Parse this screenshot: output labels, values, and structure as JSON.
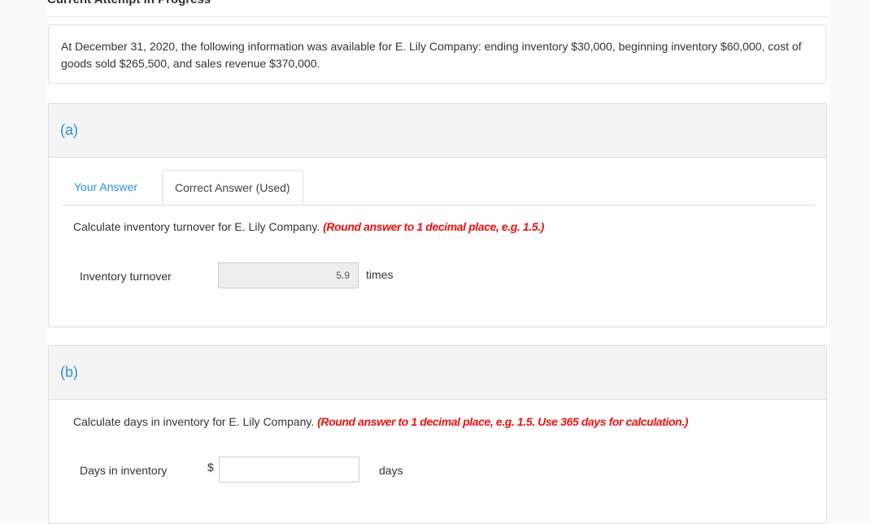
{
  "page_title": "Current Attempt in Progress",
  "problem_text": "At December 31, 2020, the following information was available for E. Lily Company: ending inventory $30,000, beginning inventory $60,000, cost of goods sold $265,500, and sales revenue $370,000.",
  "part_a": {
    "label": "(a)",
    "tabs": [
      {
        "label": "Your Answer",
        "active": false
      },
      {
        "label": "Correct Answer (Used)",
        "active": true
      }
    ],
    "question": "Calculate inventory turnover for E. Lily Company.",
    "hint": "(Round answer to 1 decimal place, e.g. 1.5.)",
    "field_label": "Inventory turnover",
    "field_value": "5.9",
    "unit": "times"
  },
  "part_b": {
    "label": "(b)",
    "question": "Calculate days in inventory for E. Lily Company.",
    "hint": "(Round answer to 1 decimal place, e.g. 1.5. Use 365 days for calculation.)",
    "field_label": "Days in inventory",
    "currency": "$",
    "field_value": "",
    "unit": "days"
  },
  "colors": {
    "accent": "#2d8ee0",
    "hint": "#ee1111"
  }
}
